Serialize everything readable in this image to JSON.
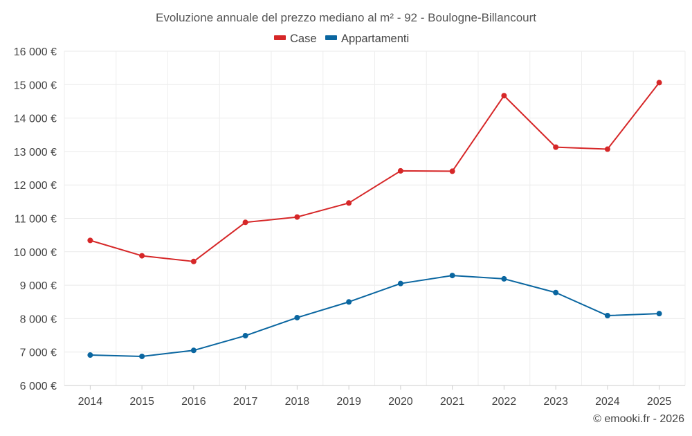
{
  "chart_data": {
    "type": "line",
    "title": "Evoluzione annuale del prezzo mediano al m² - 92 - Boulogne-Billancourt",
    "xlabel": "",
    "ylabel": "",
    "categories": [
      "2014",
      "2015",
      "2016",
      "2017",
      "2018",
      "2019",
      "2020",
      "2021",
      "2022",
      "2023",
      "2024",
      "2025"
    ],
    "ylim": [
      6000,
      16000
    ],
    "yticks": [
      6000,
      7000,
      8000,
      9000,
      10000,
      11000,
      12000,
      13000,
      14000,
      15000,
      16000
    ],
    "ytick_labels": [
      "6 000 €",
      "7 000 €",
      "8 000 €",
      "9 000 €",
      "10 000 €",
      "11 000 €",
      "12 000 €",
      "13 000 €",
      "14 000 €",
      "15 000 €",
      "16 000 €"
    ],
    "grid": true,
    "legend_position": "top-center",
    "series": [
      {
        "name": "Case",
        "color": "#d62728",
        "values": [
          10340,
          9880,
          9710,
          10880,
          11040,
          11460,
          12420,
          12410,
          14670,
          13130,
          13070,
          15060
        ]
      },
      {
        "name": "Appartamenti",
        "color": "#0a66a0",
        "values": [
          6910,
          6870,
          7050,
          7490,
          8030,
          8500,
          9050,
          9290,
          9190,
          8780,
          8090,
          8150
        ]
      }
    ]
  },
  "credit": "© emooki.fr - 2026"
}
